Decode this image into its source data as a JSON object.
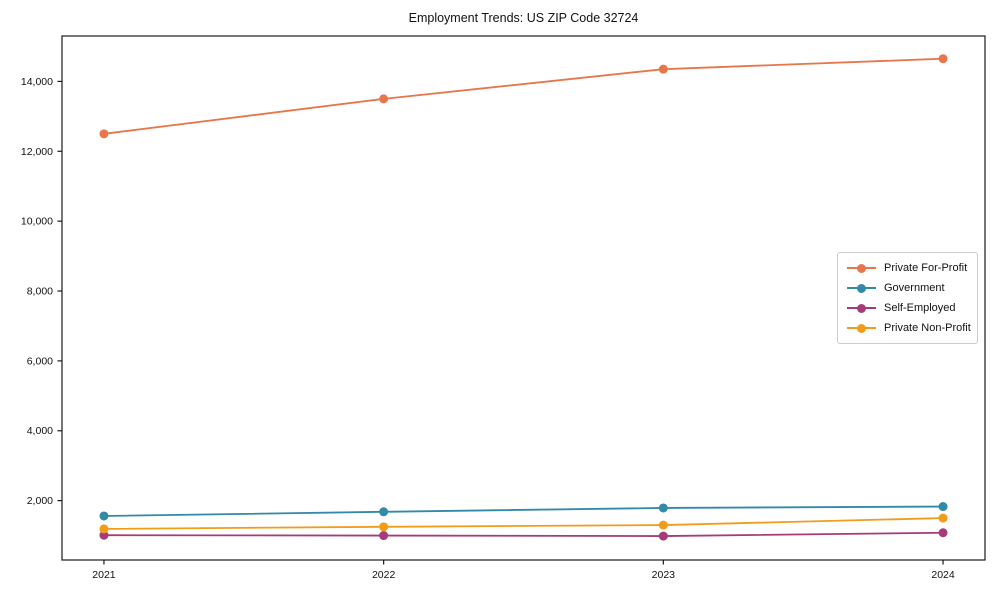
{
  "chart_data": {
    "type": "line",
    "title": "Employment Trends: US ZIP Code 32724",
    "xlabel": "",
    "ylabel": "",
    "x": [
      2021,
      2022,
      2023,
      2024
    ],
    "x_tick_labels": [
      "2021",
      "2022",
      "2023",
      "2024"
    ],
    "series": [
      {
        "name": "Private For-Profit",
        "color": "#e8764b",
        "values": [
          12500,
          13500,
          14350,
          14650
        ]
      },
      {
        "name": "Government",
        "color": "#3289a8",
        "values": [
          1560,
          1680,
          1790,
          1830
        ]
      },
      {
        "name": "Self-Employed",
        "color": "#a53b78",
        "values": [
          1010,
          1000,
          985,
          1080
        ]
      },
      {
        "name": "Private Non-Profit",
        "color": "#f29c1c",
        "values": [
          1190,
          1250,
          1300,
          1500
        ]
      }
    ],
    "yticks": [
      2000,
      4000,
      6000,
      8000,
      10000,
      12000,
      14000
    ],
    "ytick_labels": [
      "2,000",
      "4,000",
      "6,000",
      "8,000",
      "10,000",
      "12,000",
      "14,000"
    ],
    "ylim": [
      300,
      15300
    ],
    "xlim": [
      2020.85,
      2024.15
    ],
    "grid": false,
    "legend_position": "center-right",
    "marker": "circle",
    "axis_color": "#1a1a1a",
    "background": "#ffffff"
  }
}
